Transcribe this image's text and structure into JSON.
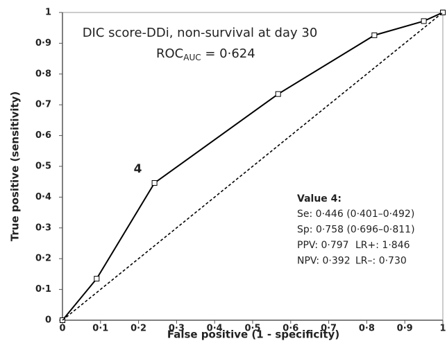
{
  "chart_data": {
    "type": "line",
    "title": "DIC score-DDi, non-survival at day 30",
    "auc_label": {
      "main": "ROC",
      "subscript": "AUC",
      "rest": " = 0·624"
    },
    "xlabel": "False positive (1 - specificity)",
    "ylabel": "True positive (sensitivity)",
    "xlim": [
      0,
      1
    ],
    "ylim": [
      0,
      1
    ],
    "xticks": [
      0,
      {
        "value": 0.1,
        "label": "0·1"
      },
      {
        "value": 0.2,
        "label": "0·2"
      },
      {
        "value": 0.3,
        "label": "0·3"
      },
      {
        "value": 0.4,
        "label": "0·4"
      },
      {
        "value": 0.5,
        "label": "0·5"
      },
      {
        "value": 0.6,
        "label": "0·6"
      },
      {
        "value": 0.7,
        "label": "0·7"
      },
      {
        "value": 0.8,
        "label": "0·8"
      },
      {
        "value": 0.9,
        "label": "0·9"
      },
      1
    ],
    "yticks": [
      0,
      {
        "value": 0.1,
        "label": "0·1"
      },
      {
        "value": 0.2,
        "label": "0·2"
      },
      {
        "value": 0.3,
        "label": "0·3"
      },
      {
        "value": 0.4,
        "label": "0·4"
      },
      {
        "value": 0.5,
        "label": "0·5"
      },
      {
        "value": 0.6,
        "label": "0·6"
      },
      {
        "value": 0.7,
        "label": "0·7"
      },
      {
        "value": 0.8,
        "label": "0·8"
      },
      {
        "value": 0.9,
        "label": "0·9"
      },
      1
    ],
    "grid": false,
    "series": [
      {
        "color": "#000000",
        "markers": true,
        "dashed": false,
        "x": [
          0,
          0.09,
          0.242,
          0.567,
          0.82,
          0.95,
          1
        ],
        "values": [
          0,
          0.135,
          0.446,
          0.735,
          0.926,
          0.972,
          1
        ]
      },
      {
        "color": "#000000",
        "markers": false,
        "dashed": true,
        "x": [
          0,
          1
        ],
        "values": [
          0,
          1
        ]
      }
    ],
    "point_annotation": {
      "text": "4",
      "x": 0.242,
      "y": 0.446
    },
    "stats_box": {
      "title": "Value 4:",
      "lines": [
        [
          "Se: 0·446 (0·401–0·492)"
        ],
        [
          "Sp: 0·758 (0·696–0·811)"
        ],
        [
          "PPV: 0·797",
          "LR+: 1·846"
        ],
        [
          "NPV: 0·392",
          "LR–: 0·730"
        ]
      ]
    }
  }
}
